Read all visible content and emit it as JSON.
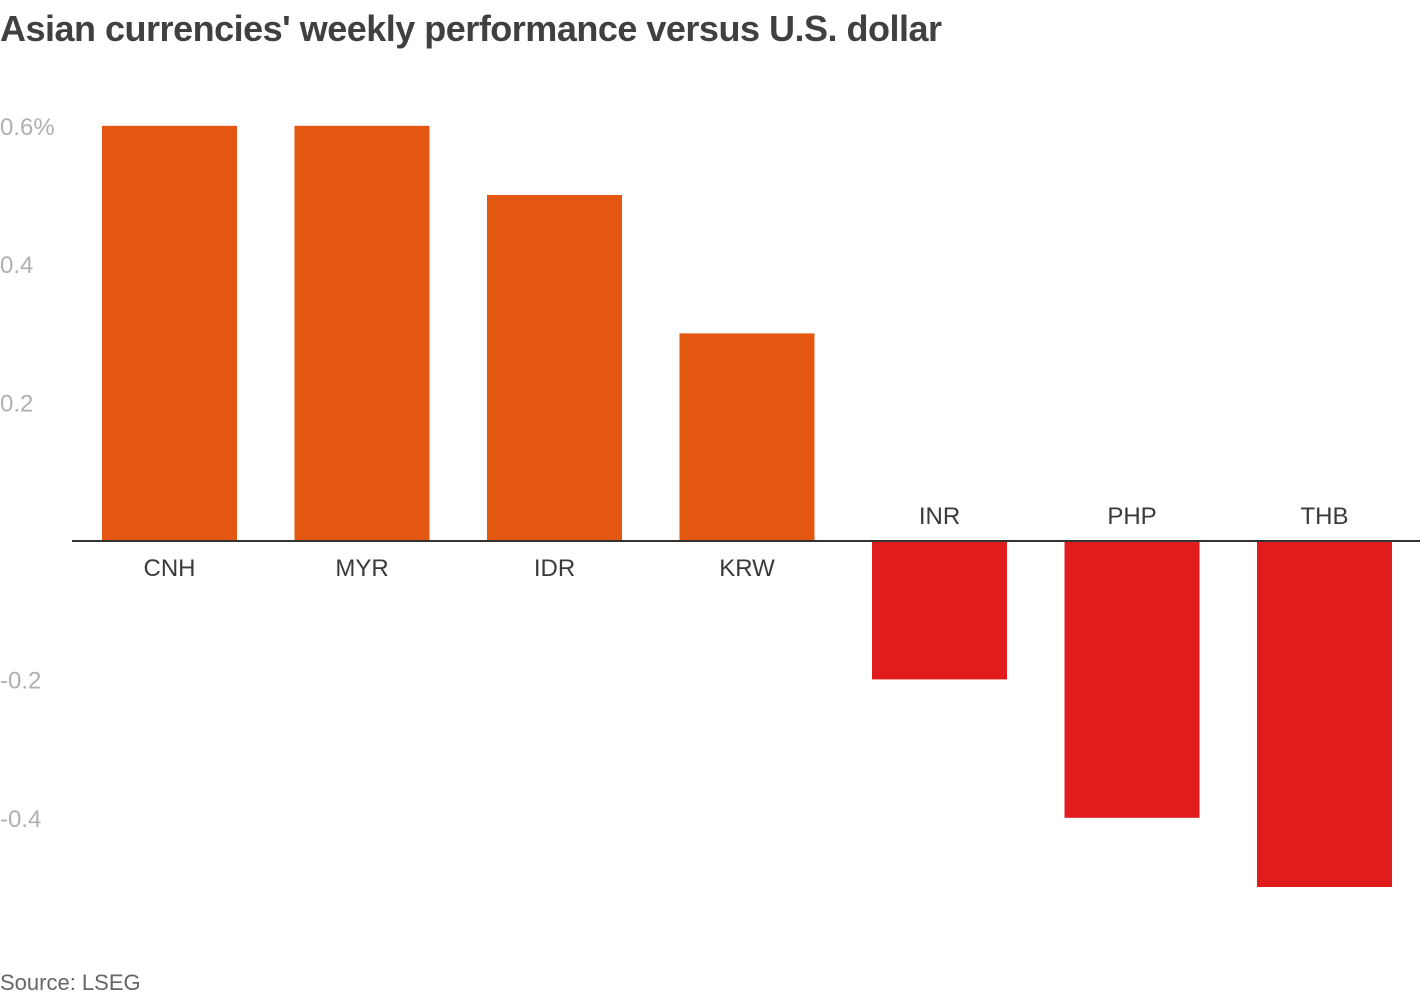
{
  "title": "Asian currencies' weekly performance versus U.S. dollar",
  "source": "Source: LSEG",
  "colors": {
    "positive": "#e35710",
    "negative": "#e01c1c",
    "axis": "#333333",
    "tick_text": "#b0b0b0",
    "category_text": "#3a3a3a"
  },
  "chart_data": {
    "type": "bar",
    "categories": [
      "CNH",
      "MYR",
      "IDR",
      "KRW",
      "INR",
      "PHP",
      "THB"
    ],
    "values": [
      0.6,
      0.6,
      0.5,
      0.3,
      -0.2,
      -0.4,
      -0.5
    ],
    "unit": "%",
    "ylim": [
      -0.5,
      0.6
    ],
    "yticks": [
      {
        "value": 0.6,
        "label": "0.6%"
      },
      {
        "value": 0.4,
        "label": "0.4"
      },
      {
        "value": 0.2,
        "label": "0.2"
      },
      {
        "value": -0.2,
        "label": "-0.2"
      },
      {
        "value": -0.4,
        "label": "-0.4"
      }
    ],
    "grid": false,
    "xlabel": "",
    "ylabel": ""
  }
}
